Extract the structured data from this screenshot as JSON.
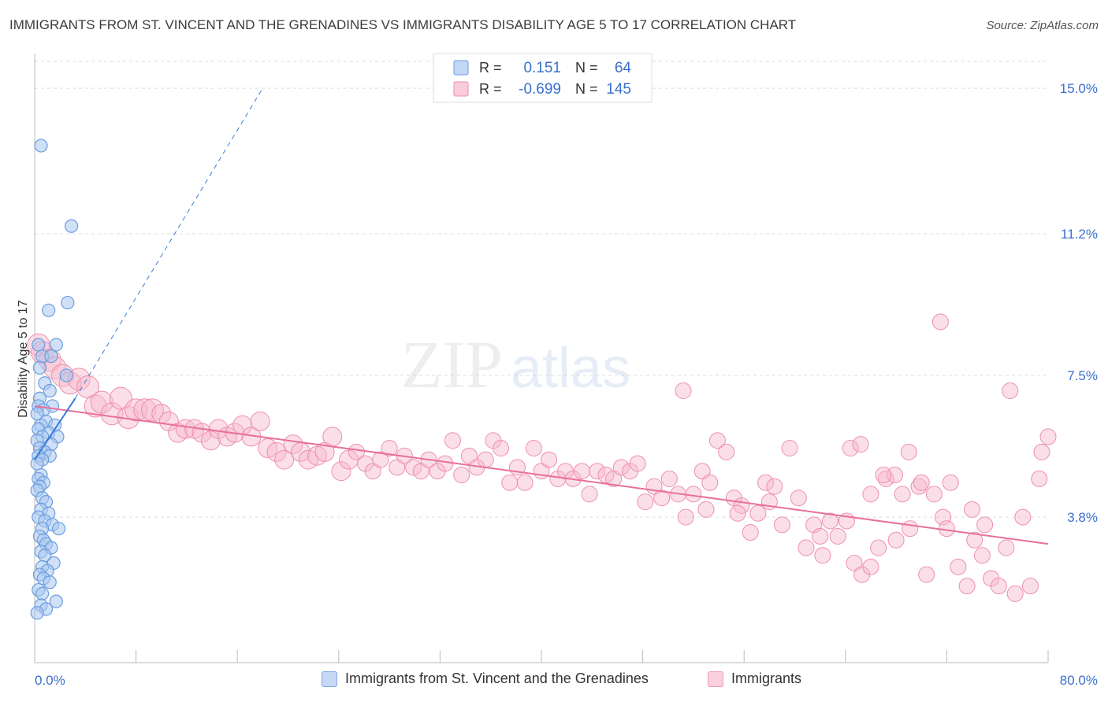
{
  "header": {
    "title": "IMMIGRANTS FROM ST. VINCENT AND THE GRENADINES VS IMMIGRANTS DISABILITY AGE 5 TO 17 CORRELATION CHART",
    "source": "Source: ZipAtlas.com"
  },
  "watermark": {
    "zip": "ZIP",
    "atlas": "atlas"
  },
  "legend_top": {
    "rows": [
      {
        "r_label": "R =",
        "r_value": "0.151",
        "n_label": "N =",
        "n_value": "64"
      },
      {
        "r_label": "R =",
        "r_value": "-0.699",
        "n_label": "N =",
        "n_value": "145"
      }
    ]
  },
  "legend_bottom": {
    "series1": "Immigrants from St. Vincent and the Grenadines",
    "series2": "Immigrants"
  },
  "colors": {
    "series1_fill": "#a9c6ee",
    "series1_stroke": "#6b9ee0",
    "series1_line": "#3a7bd5",
    "series2_fill": "#f6b8cb",
    "series2_stroke": "#ee8fac",
    "series2_line": "#e8709a",
    "value_text": "#3a6fcf",
    "grid": "#dddddd"
  },
  "chart_data": {
    "type": "scatter",
    "xlabel": "",
    "ylabel": "Disability Age 5 to 17",
    "xlim": [
      0,
      80
    ],
    "ylim": [
      0,
      15.7
    ],
    "x_tick_labels": [
      "0.0%",
      "80.0%"
    ],
    "y_ticks": [
      3.8,
      7.5,
      11.2,
      15.0
    ],
    "y_tick_labels": [
      "3.8%",
      "7.5%",
      "11.2%",
      "15.0%"
    ],
    "grid": "horizontal dashed",
    "series": [
      {
        "name": "Immigrants from St. Vincent and the Grenadines",
        "R": 0.151,
        "N": 64,
        "trend": {
          "x0": 0.0,
          "y0": 5.3,
          "x1": 3.2,
          "y1": 6.9
        },
        "trend_dashed_extension": {
          "x0": 3.2,
          "y0": 6.9,
          "x1": 18.0,
          "y1": 15.0
        },
        "points": [
          [
            0.5,
            13.5
          ],
          [
            2.9,
            11.4
          ],
          [
            2.6,
            9.4
          ],
          [
            1.1,
            9.2
          ],
          [
            0.3,
            8.3
          ],
          [
            1.7,
            8.3
          ],
          [
            0.6,
            8.0
          ],
          [
            1.3,
            8.0
          ],
          [
            0.4,
            7.7
          ],
          [
            2.5,
            7.5
          ],
          [
            0.8,
            7.3
          ],
          [
            1.2,
            7.1
          ],
          [
            0.4,
            6.9
          ],
          [
            1.4,
            6.7
          ],
          [
            0.3,
            6.7
          ],
          [
            0.7,
            6.6
          ],
          [
            0.2,
            6.5
          ],
          [
            0.9,
            6.3
          ],
          [
            0.5,
            6.2
          ],
          [
            1.6,
            6.2
          ],
          [
            0.3,
            6.1
          ],
          [
            1.1,
            6.0
          ],
          [
            0.6,
            5.9
          ],
          [
            1.8,
            5.9
          ],
          [
            0.2,
            5.8
          ],
          [
            1.3,
            5.7
          ],
          [
            0.4,
            5.6
          ],
          [
            0.8,
            5.5
          ],
          [
            1.2,
            5.4
          ],
          [
            0.3,
            5.4
          ],
          [
            0.6,
            5.3
          ],
          [
            0.2,
            5.2
          ],
          [
            0.5,
            4.9
          ],
          [
            0.3,
            4.8
          ],
          [
            0.7,
            4.7
          ],
          [
            0.4,
            4.6
          ],
          [
            0.2,
            4.5
          ],
          [
            0.6,
            4.3
          ],
          [
            0.9,
            4.2
          ],
          [
            0.5,
            4.0
          ],
          [
            1.1,
            3.9
          ],
          [
            0.3,
            3.8
          ],
          [
            0.8,
            3.7
          ],
          [
            1.4,
            3.6
          ],
          [
            0.6,
            3.5
          ],
          [
            1.9,
            3.5
          ],
          [
            0.4,
            3.3
          ],
          [
            0.7,
            3.2
          ],
          [
            0.9,
            3.1
          ],
          [
            1.3,
            3.0
          ],
          [
            0.5,
            2.9
          ],
          [
            0.8,
            2.8
          ],
          [
            1.5,
            2.6
          ],
          [
            0.6,
            2.5
          ],
          [
            1.0,
            2.4
          ],
          [
            0.4,
            2.3
          ],
          [
            0.7,
            2.2
          ],
          [
            1.2,
            2.1
          ],
          [
            0.3,
            1.9
          ],
          [
            0.6,
            1.8
          ],
          [
            1.7,
            1.6
          ],
          [
            0.5,
            1.5
          ],
          [
            0.9,
            1.4
          ],
          [
            0.2,
            1.3
          ]
        ]
      },
      {
        "name": "Immigrants",
        "R": -0.699,
        "N": 145,
        "trend": {
          "x0": 0.0,
          "y0": 6.7,
          "x1": 80.0,
          "y1": 3.1
        },
        "points": [
          [
            0.3,
            8.3
          ],
          [
            0.6,
            8.1
          ],
          [
            1.2,
            7.9
          ],
          [
            1.6,
            7.7
          ],
          [
            2.2,
            7.5
          ],
          [
            2.8,
            7.3
          ],
          [
            3.5,
            7.4
          ],
          [
            4.2,
            7.2
          ],
          [
            4.8,
            6.7
          ],
          [
            5.3,
            6.8
          ],
          [
            6.1,
            6.5
          ],
          [
            6.8,
            6.9
          ],
          [
            7.4,
            6.4
          ],
          [
            8.0,
            6.6
          ],
          [
            8.7,
            6.6
          ],
          [
            9.3,
            6.6
          ],
          [
            10.0,
            6.5
          ],
          [
            10.6,
            6.3
          ],
          [
            11.3,
            6.0
          ],
          [
            11.9,
            6.1
          ],
          [
            12.6,
            6.1
          ],
          [
            13.2,
            6.0
          ],
          [
            13.9,
            5.8
          ],
          [
            14.5,
            6.1
          ],
          [
            15.2,
            5.9
          ],
          [
            15.8,
            6.0
          ],
          [
            16.4,
            6.2
          ],
          [
            17.1,
            5.9
          ],
          [
            17.8,
            6.3
          ],
          [
            18.4,
            5.6
          ],
          [
            19.1,
            5.5
          ],
          [
            19.7,
            5.3
          ],
          [
            20.4,
            5.7
          ],
          [
            21.0,
            5.5
          ],
          [
            21.6,
            5.3
          ],
          [
            22.3,
            5.4
          ],
          [
            22.9,
            5.5
          ],
          [
            23.5,
            5.9
          ],
          [
            24.2,
            5.0
          ],
          [
            24.8,
            5.3
          ],
          [
            25.4,
            5.5
          ],
          [
            26.1,
            5.2
          ],
          [
            26.7,
            5.0
          ],
          [
            27.3,
            5.3
          ],
          [
            28.0,
            5.6
          ],
          [
            28.6,
            5.1
          ],
          [
            29.2,
            5.4
          ],
          [
            29.9,
            5.1
          ],
          [
            30.5,
            5.0
          ],
          [
            31.1,
            5.3
          ],
          [
            31.8,
            5.0
          ],
          [
            32.4,
            5.2
          ],
          [
            33.0,
            5.8
          ],
          [
            33.7,
            4.9
          ],
          [
            34.3,
            5.4
          ],
          [
            34.9,
            5.1
          ],
          [
            35.6,
            5.3
          ],
          [
            36.2,
            5.8
          ],
          [
            36.8,
            5.6
          ],
          [
            37.5,
            4.7
          ],
          [
            38.1,
            5.1
          ],
          [
            38.7,
            4.7
          ],
          [
            39.4,
            5.6
          ],
          [
            40.0,
            5.0
          ],
          [
            40.6,
            5.3
          ],
          [
            41.3,
            4.8
          ],
          [
            41.9,
            5.0
          ],
          [
            42.5,
            4.8
          ],
          [
            43.2,
            5.0
          ],
          [
            43.8,
            4.4
          ],
          [
            44.4,
            5.0
          ],
          [
            45.1,
            4.9
          ],
          [
            45.7,
            4.8
          ],
          [
            46.3,
            5.1
          ],
          [
            47.0,
            5.0
          ],
          [
            47.6,
            5.2
          ],
          [
            48.2,
            4.2
          ],
          [
            48.9,
            4.6
          ],
          [
            49.5,
            4.3
          ],
          [
            50.1,
            4.8
          ],
          [
            50.8,
            4.4
          ],
          [
            51.4,
            3.8
          ],
          [
            52.0,
            4.4
          ],
          [
            52.7,
            5.0
          ],
          [
            53.3,
            4.7
          ],
          [
            53.9,
            5.8
          ],
          [
            54.6,
            5.5
          ],
          [
            55.2,
            4.3
          ],
          [
            55.8,
            4.1
          ],
          [
            56.5,
            3.4
          ],
          [
            57.1,
            3.9
          ],
          [
            57.7,
            4.7
          ],
          [
            58.4,
            4.6
          ],
          [
            59.0,
            3.6
          ],
          [
            59.6,
            5.6
          ],
          [
            60.3,
            4.3
          ],
          [
            60.9,
            3.0
          ],
          [
            61.5,
            3.6
          ],
          [
            62.2,
            2.8
          ],
          [
            62.8,
            3.7
          ],
          [
            63.4,
            3.3
          ],
          [
            64.1,
            3.7
          ],
          [
            64.7,
            2.6
          ],
          [
            65.3,
            2.3
          ],
          [
            66.0,
            2.5
          ],
          [
            66.6,
            3.0
          ],
          [
            67.2,
            4.8
          ],
          [
            67.9,
            4.9
          ],
          [
            68.5,
            4.4
          ],
          [
            69.1,
            3.5
          ],
          [
            69.8,
            4.6
          ],
          [
            70.4,
            2.3
          ],
          [
            71.0,
            4.4
          ],
          [
            71.7,
            3.8
          ],
          [
            72.3,
            4.7
          ],
          [
            72.9,
            2.5
          ],
          [
            73.6,
            2.0
          ],
          [
            74.2,
            3.2
          ],
          [
            74.8,
            2.8
          ],
          [
            75.5,
            2.2
          ],
          [
            76.1,
            2.0
          ],
          [
            76.7,
            3.0
          ],
          [
            77.4,
            1.8
          ],
          [
            78.0,
            3.8
          ],
          [
            78.6,
            2.0
          ],
          [
            79.3,
            4.8
          ],
          [
            51.2,
            7.1
          ],
          [
            64.4,
            5.6
          ],
          [
            65.2,
            5.7
          ],
          [
            67.0,
            4.9
          ],
          [
            69.0,
            5.5
          ],
          [
            71.5,
            8.9
          ],
          [
            74.0,
            4.0
          ],
          [
            75.0,
            3.6
          ],
          [
            77.0,
            7.1
          ],
          [
            79.5,
            5.5
          ],
          [
            80.0,
            5.9
          ],
          [
            70.0,
            4.7
          ],
          [
            53.0,
            4.0
          ],
          [
            55.5,
            3.9
          ],
          [
            58.0,
            4.2
          ],
          [
            62.0,
            3.3
          ],
          [
            66.0,
            4.4
          ],
          [
            68.0,
            3.2
          ],
          [
            72.0,
            3.5
          ]
        ]
      }
    ]
  }
}
